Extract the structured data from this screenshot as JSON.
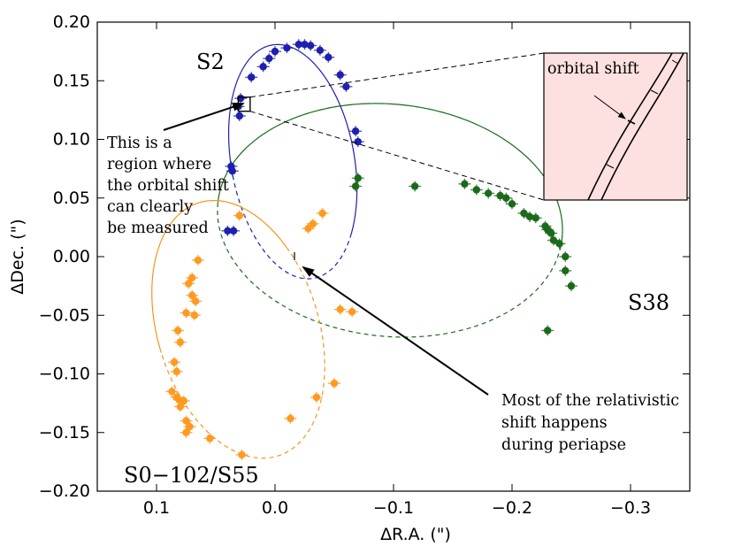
{
  "chart_data": {
    "type": "scatter",
    "title": "",
    "xlabel": "ΔR.A. (\")",
    "ylabel": "ΔDec. (\")",
    "xlim": [
      0.15,
      -0.35
    ],
    "ylim": [
      -0.2,
      0.2
    ],
    "x_ticks": [
      0.1,
      0.0,
      -0.1,
      -0.2,
      -0.3
    ],
    "x_tick_labels": [
      "0.1",
      "0.0",
      "−0.1",
      "−0.2",
      "−0.3"
    ],
    "y_ticks": [
      0.2,
      0.15,
      0.1,
      0.05,
      0.0,
      -0.05,
      -0.1,
      -0.15,
      -0.2
    ],
    "y_tick_labels": [
      "0.20",
      "0.15",
      "0.10",
      "0.05",
      "0.00",
      "−0.05",
      "−0.10",
      "−0.15",
      "−0.20"
    ],
    "grid": false,
    "series": [
      {
        "name": "S2",
        "color": "#1f1fae",
        "orbit": {
          "center": [
            -0.015,
            0.081
          ],
          "semi_axes": [
            0.052,
            0.101
          ],
          "rotation_deg": -10,
          "style": "solid",
          "dashed_fraction_start": 0.62
        },
        "points": [
          [
            0.03,
            0.12
          ],
          [
            0.031,
            0.128
          ],
          [
            0.029,
            0.135
          ],
          [
            0.02,
            0.153
          ],
          [
            0.01,
            0.162
          ],
          [
            0.005,
            0.169
          ],
          [
            0.0,
            0.175
          ],
          [
            -0.01,
            0.178
          ],
          [
            -0.02,
            0.181
          ],
          [
            -0.025,
            0.181
          ],
          [
            -0.03,
            0.18
          ],
          [
            -0.038,
            0.176
          ],
          [
            -0.045,
            0.17
          ],
          [
            -0.055,
            0.155
          ],
          [
            -0.06,
            0.145
          ],
          [
            -0.068,
            0.107
          ],
          [
            -0.07,
            0.098
          ],
          [
            0.037,
            0.077
          ],
          [
            0.036,
            0.073
          ],
          [
            0.04,
            0.022
          ],
          [
            0.035,
            0.022
          ]
        ]
      },
      {
        "name": "S38",
        "color": "#1a6a1a",
        "orbit": {
          "center": [
            -0.097,
            0.031
          ],
          "semi_axes": [
            0.146,
            0.099
          ],
          "rotation_deg": 6,
          "style": "solid",
          "dashed_fraction_start": 0.5
        },
        "points": [
          [
            -0.07,
            0.067
          ],
          [
            -0.068,
            0.06
          ],
          [
            -0.118,
            0.06
          ],
          [
            -0.16,
            0.062
          ],
          [
            -0.17,
            0.057
          ],
          [
            -0.18,
            0.054
          ],
          [
            -0.19,
            0.052
          ],
          [
            -0.195,
            0.05
          ],
          [
            -0.2,
            0.045
          ],
          [
            -0.21,
            0.037
          ],
          [
            -0.215,
            0.034
          ],
          [
            -0.22,
            0.033
          ],
          [
            -0.228,
            0.026
          ],
          [
            -0.23,
            0.023
          ],
          [
            -0.233,
            0.02
          ],
          [
            -0.235,
            0.014
          ],
          [
            -0.24,
            0.011
          ],
          [
            -0.245,
            0.0
          ],
          [
            -0.245,
            -0.012
          ],
          [
            -0.25,
            -0.025
          ],
          [
            -0.23,
            -0.063
          ]
        ]
      },
      {
        "name": "S0−102/S55",
        "color": "#f7941d",
        "orbit": {
          "center": [
            0.031,
            -0.062
          ],
          "semi_axes": [
            0.068,
            0.113
          ],
          "rotation_deg": -17,
          "style": "solid",
          "dashed_fraction_start": 0.42
        },
        "points": [
          [
            0.03,
            0.035
          ],
          [
            -0.04,
            0.037
          ],
          [
            -0.032,
            0.028
          ],
          [
            -0.028,
            0.024
          ],
          [
            0.065,
            -0.003
          ],
          [
            0.07,
            -0.018
          ],
          [
            0.073,
            -0.023
          ],
          [
            0.07,
            -0.033
          ],
          [
            0.067,
            -0.038
          ],
          [
            0.075,
            -0.048
          ],
          [
            0.068,
            -0.05
          ],
          [
            0.082,
            -0.063
          ],
          [
            0.08,
            -0.073
          ],
          [
            0.085,
            -0.09
          ],
          [
            0.083,
            -0.098
          ],
          [
            0.087,
            -0.115
          ],
          [
            0.083,
            -0.12
          ],
          [
            0.081,
            -0.122
          ],
          [
            0.077,
            -0.123
          ],
          [
            0.08,
            -0.128
          ],
          [
            0.075,
            -0.14
          ],
          [
            0.072,
            -0.145
          ],
          [
            0.075,
            -0.15
          ],
          [
            0.055,
            -0.155
          ],
          [
            0.028,
            -0.169
          ],
          [
            -0.013,
            -0.138
          ],
          [
            -0.035,
            -0.12
          ],
          [
            -0.05,
            -0.108
          ],
          [
            -0.055,
            -0.045
          ],
          [
            -0.065,
            -0.047
          ]
        ]
      }
    ],
    "annotations": {
      "star_labels": {
        "s2": "S2",
        "s38": "S38",
        "s55": "S0−102/S55"
      },
      "box_note": [
        "This is a",
        "region where",
        "the orbital shift",
        "can clearly",
        "be measured"
      ],
      "periapse_note": [
        "Most of the relativistic",
        "shift happens",
        "during periapse"
      ],
      "inset_label": "orbital shift"
    },
    "inset": {
      "zoom_region": {
        "x": [
          0.031,
          0.021
        ],
        "y": [
          0.124,
          0.136
        ]
      },
      "background": "#fde0e0"
    }
  }
}
